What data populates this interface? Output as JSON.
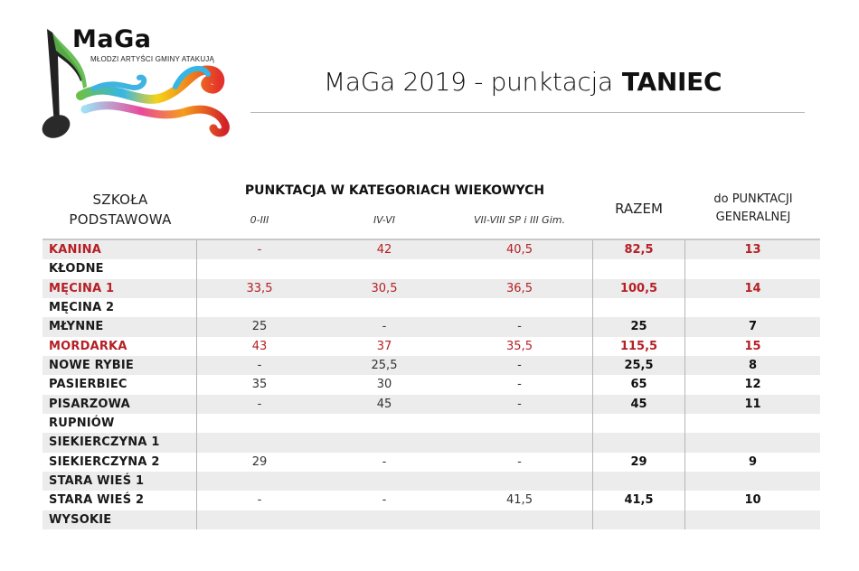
{
  "logo": {
    "title": "MaGa",
    "subtitle": "MŁODZI ARTYŚCI GMINY ATAKUJĄ",
    "icon": "music-note-rainbow-swirl-icon"
  },
  "header": {
    "title_prefix": "MaGa 2019 - punktacja",
    "title_strong": "TANIEC"
  },
  "table": {
    "headers": {
      "school_line1": "SZKOŁA",
      "school_line2": "PODSTAWOWA",
      "group": "PUNKTACJA W KATEGORIACH WIEKOWYCH",
      "cat_a": "0-III",
      "cat_b": "IV-VI",
      "cat_c": "VII-VIII SP i III Gim.",
      "razem": "RAZEM",
      "general_line1": "do PUNKTACJI",
      "general_line2": "GENERALNEJ"
    },
    "highlight_color": "#b51f25",
    "rows": [
      {
        "name": "KANINA",
        "a": "-",
        "b": "42",
        "c": "40,5",
        "razem": "82,5",
        "general": "13",
        "highlight": true
      },
      {
        "name": "KŁODNE",
        "a": "",
        "b": "",
        "c": "",
        "razem": "",
        "general": "",
        "highlight": false
      },
      {
        "name": "MĘCINA 1",
        "a": "33,5",
        "b": "30,5",
        "c": "36,5",
        "razem": "100,5",
        "general": "14",
        "highlight": true
      },
      {
        "name": "MĘCINA 2",
        "a": "",
        "b": "",
        "c": "",
        "razem": "",
        "general": "",
        "highlight": false
      },
      {
        "name": "MŁYNNE",
        "a": "25",
        "b": "-",
        "c": "-",
        "razem": "25",
        "general": "7",
        "highlight": false
      },
      {
        "name": "MORDARKA",
        "a": "43",
        "b": "37",
        "c": "35,5",
        "razem": "115,5",
        "general": "15",
        "highlight": true
      },
      {
        "name": "NOWE RYBIE",
        "a": "-",
        "b": "25,5",
        "c": "-",
        "razem": "25,5",
        "general": "8",
        "highlight": false
      },
      {
        "name": "PASIERBIEC",
        "a": "35",
        "b": "30",
        "c": "-",
        "razem": "65",
        "general": "12",
        "highlight": false
      },
      {
        "name": "PISARZOWA",
        "a": "-",
        "b": "45",
        "c": "-",
        "razem": "45",
        "general": "11",
        "highlight": false
      },
      {
        "name": "RUPNIÓW",
        "a": "",
        "b": "",
        "c": "",
        "razem": "",
        "general": "",
        "highlight": false
      },
      {
        "name": "SIEKIERCZYNA 1",
        "a": "",
        "b": "",
        "c": "",
        "razem": "",
        "general": "",
        "highlight": false
      },
      {
        "name": "SIEKIERCZYNA 2",
        "a": "29",
        "b": "-",
        "c": "-",
        "razem": "29",
        "general": "9",
        "highlight": false
      },
      {
        "name": "STARA WIEŚ 1",
        "a": "",
        "b": "",
        "c": "",
        "razem": "",
        "general": "",
        "highlight": false
      },
      {
        "name": "STARA WIEŚ 2",
        "a": "-",
        "b": "-",
        "c": "41,5",
        "razem": "41,5",
        "general": "10",
        "highlight": false
      },
      {
        "name": "WYSOKIE",
        "a": "",
        "b": "",
        "c": "",
        "razem": "",
        "general": "",
        "highlight": false
      }
    ]
  }
}
